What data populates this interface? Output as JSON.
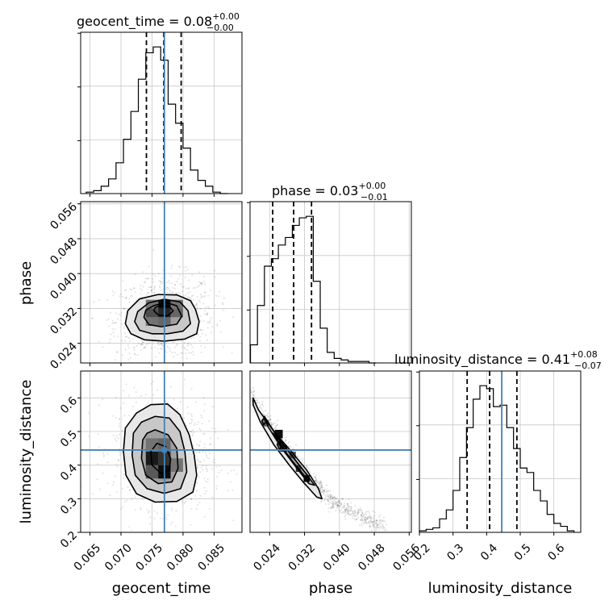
{
  "chart_data": {
    "type": "corner",
    "parameters": [
      "geocent_time",
      "phase",
      "luminosity_distance"
    ],
    "titles": [
      {
        "param": "geocent_time",
        "median_text": "geocent_time = 0.08",
        "plus": "+0.00",
        "minus": "−0.00"
      },
      {
        "param": "phase",
        "median_text": "phase = 0.03",
        "plus": "+0.00",
        "minus": "−0.01"
      },
      {
        "param": "luminosity_distance",
        "median_text": "luminosity_distance = 0.41",
        "plus": "+0.08",
        "minus": "−0.07"
      }
    ],
    "ranges": {
      "geocent_time": [
        0.0635,
        0.0895
      ],
      "phase": [
        0.0195,
        0.0565
      ],
      "luminosity_distance": [
        0.2,
        0.68
      ]
    },
    "ticks": {
      "geocent_time": {
        "values": [
          0.065,
          0.07,
          0.075,
          0.08,
          0.085
        ],
        "labels": [
          "0.065",
          "0.070",
          "0.075",
          "0.080",
          "0.085"
        ]
      },
      "phase_x": {
        "values": [
          0.024,
          0.032,
          0.04,
          0.048,
          0.056
        ],
        "labels": [
          "0.024",
          "0.032",
          "0.040",
          "0.048",
          "0.056"
        ]
      },
      "phase_y": {
        "values": [
          0.024,
          0.032,
          0.04,
          0.048,
          0.056
        ],
        "labels": [
          "0.024",
          "0.032",
          "0.040",
          "0.048",
          "0.056"
        ]
      },
      "luminosity_distance_x": {
        "values": [
          0.2,
          0.3,
          0.4,
          0.5,
          0.6
        ],
        "labels": [
          "0.2",
          "0.3",
          "0.4",
          "0.5",
          "0.6"
        ]
      },
      "luminosity_distance_y": {
        "values": [
          0.2,
          0.3,
          0.4,
          0.5,
          0.6
        ],
        "labels": [
          "0.2",
          "0.3",
          "0.4",
          "0.5",
          "0.6"
        ]
      }
    },
    "axis_labels": {
      "x": [
        "geocent_time",
        "phase",
        "luminosity_distance"
      ],
      "y": [
        "phase",
        "luminosity_distance"
      ]
    },
    "truths": {
      "geocent_time": 0.077,
      "phase": null,
      "luminosity_distance": 0.445
    },
    "quantiles": {
      "geocent_time": [
        0.0741,
        0.0769,
        0.0797
      ],
      "phase": [
        0.0247,
        0.0295,
        0.0336
      ],
      "luminosity_distance": [
        0.342,
        0.409,
        0.49
      ]
    },
    "histograms": {
      "geocent_time": {
        "edges": [
          0.0644,
          0.0656,
          0.0668,
          0.068,
          0.0692,
          0.0704,
          0.0716,
          0.0728,
          0.074,
          0.0752,
          0.0764,
          0.0776,
          0.0788,
          0.08,
          0.0812,
          0.0824,
          0.0836,
          0.0848,
          0.086,
          0.0872
        ],
        "counts": [
          1,
          2,
          5,
          10,
          21,
          37,
          56,
          78,
          96,
          100,
          91,
          61,
          48,
          31,
          16,
          9,
          5,
          1,
          0
        ]
      },
      "phase": {
        "edges": [
          0.0196,
          0.0212,
          0.0228,
          0.0244,
          0.026,
          0.0276,
          0.0292,
          0.0308,
          0.0324,
          0.034,
          0.0356,
          0.0372,
          0.0388,
          0.0404,
          0.042,
          0.0436,
          0.0452,
          0.0468,
          0.0484
        ],
        "counts": [
          12,
          38,
          64,
          69,
          78,
          83,
          91,
          96,
          97,
          54,
          23,
          7,
          3,
          2,
          1,
          1,
          1,
          0
        ]
      },
      "luminosity_distance": {
        "edges": [
          0.2,
          0.22,
          0.24,
          0.26,
          0.28,
          0.3,
          0.32,
          0.34,
          0.36,
          0.38,
          0.4,
          0.42,
          0.44,
          0.46,
          0.48,
          0.5,
          0.52,
          0.54,
          0.56,
          0.58,
          0.6,
          0.62,
          0.64,
          0.66
        ],
        "counts": [
          1,
          2,
          3,
          9,
          15,
          28,
          50,
          70,
          89,
          98,
          96,
          84,
          85,
          70,
          56,
          43,
          40,
          28,
          21,
          12,
          6,
          4,
          1
        ]
      }
    },
    "contours": {
      "geocent_time_vs_phase": [
        [
          [
            0.0707,
            0.0285
          ],
          [
            0.0716,
            0.0262
          ],
          [
            0.0738,
            0.0248
          ],
          [
            0.077,
            0.0245
          ],
          [
            0.0803,
            0.025
          ],
          [
            0.0822,
            0.0262
          ],
          [
            0.0826,
            0.029
          ],
          [
            0.082,
            0.0318
          ],
          [
            0.0812,
            0.0338
          ],
          [
            0.079,
            0.0351
          ],
          [
            0.076,
            0.0352
          ],
          [
            0.073,
            0.0342
          ],
          [
            0.0711,
            0.0315
          ]
        ],
        [
          [
            0.0722,
            0.029
          ],
          [
            0.073,
            0.027
          ],
          [
            0.075,
            0.0262
          ],
          [
            0.0775,
            0.0262
          ],
          [
            0.08,
            0.0268
          ],
          [
            0.0812,
            0.0285
          ],
          [
            0.0808,
            0.0315
          ],
          [
            0.0795,
            0.0335
          ],
          [
            0.077,
            0.0341
          ],
          [
            0.0745,
            0.0333
          ],
          [
            0.0727,
            0.0313
          ]
        ],
        [
          [
            0.0737,
            0.03
          ],
          [
            0.0745,
            0.0283
          ],
          [
            0.0765,
            0.0278
          ],
          [
            0.079,
            0.0284
          ],
          [
            0.0798,
            0.0302
          ],
          [
            0.079,
            0.0326
          ],
          [
            0.0772,
            0.0334
          ],
          [
            0.0752,
            0.0326
          ],
          [
            0.074,
            0.0316
          ]
        ],
        [
          [
            0.0753,
            0.0315
          ],
          [
            0.076,
            0.0305
          ],
          [
            0.0775,
            0.0303
          ],
          [
            0.0784,
            0.0314
          ],
          [
            0.0778,
            0.0325
          ],
          [
            0.0764,
            0.0327
          ],
          [
            0.0755,
            0.0322
          ]
        ]
      ],
      "geocent_time_vs_luminosity_distance": [
        [
          [
            0.0707,
            0.51
          ],
          [
            0.0704,
            0.44
          ],
          [
            0.0708,
            0.37
          ],
          [
            0.0725,
            0.315
          ],
          [
            0.0755,
            0.29
          ],
          [
            0.079,
            0.292
          ],
          [
            0.0816,
            0.32
          ],
          [
            0.0822,
            0.37
          ],
          [
            0.0818,
            0.43
          ],
          [
            0.081,
            0.49
          ],
          [
            0.0795,
            0.55
          ],
          [
            0.0775,
            0.582
          ],
          [
            0.0748,
            0.58
          ],
          [
            0.0725,
            0.555
          ]
        ],
        [
          [
            0.072,
            0.495
          ],
          [
            0.0718,
            0.43
          ],
          [
            0.0723,
            0.37
          ],
          [
            0.0742,
            0.33
          ],
          [
            0.077,
            0.316
          ],
          [
            0.0796,
            0.33
          ],
          [
            0.0806,
            0.38
          ],
          [
            0.0803,
            0.44
          ],
          [
            0.0795,
            0.5
          ],
          [
            0.0778,
            0.54
          ],
          [
            0.0755,
            0.545
          ],
          [
            0.0733,
            0.528
          ]
        ],
        [
          [
            0.0735,
            0.475
          ],
          [
            0.0733,
            0.42
          ],
          [
            0.074,
            0.37
          ],
          [
            0.076,
            0.345
          ],
          [
            0.0782,
            0.35
          ],
          [
            0.0792,
            0.39
          ],
          [
            0.079,
            0.45
          ],
          [
            0.0776,
            0.49
          ],
          [
            0.0755,
            0.505
          ],
          [
            0.0742,
            0.495
          ]
        ],
        [
          [
            0.0748,
            0.44
          ],
          [
            0.075,
            0.4
          ],
          [
            0.0765,
            0.375
          ],
          [
            0.0778,
            0.385
          ],
          [
            0.078,
            0.42
          ],
          [
            0.0772,
            0.455
          ],
          [
            0.0758,
            0.465
          ]
        ]
      ],
      "phase_vs_luminosity_distance": [
        [
          [
            0.0202,
            0.6
          ],
          [
            0.0214,
            0.565
          ],
          [
            0.025,
            0.5
          ],
          [
            0.029,
            0.44
          ],
          [
            0.0325,
            0.385
          ],
          [
            0.0352,
            0.33
          ],
          [
            0.036,
            0.3
          ],
          [
            0.0348,
            0.305
          ],
          [
            0.0318,
            0.348
          ],
          [
            0.0285,
            0.4
          ],
          [
            0.025,
            0.46
          ],
          [
            0.0218,
            0.53
          ],
          [
            0.0202,
            0.58
          ]
        ],
        [
          [
            0.0228,
            0.545
          ],
          [
            0.0255,
            0.49
          ],
          [
            0.029,
            0.43
          ],
          [
            0.0325,
            0.372
          ],
          [
            0.0343,
            0.34
          ],
          [
            0.033,
            0.345
          ],
          [
            0.03,
            0.395
          ],
          [
            0.0265,
            0.455
          ],
          [
            0.0236,
            0.515
          ]
        ],
        [
          [
            0.0248,
            0.495
          ],
          [
            0.0275,
            0.455
          ],
          [
            0.0305,
            0.405
          ],
          [
            0.033,
            0.365
          ],
          [
            0.032,
            0.368
          ],
          [
            0.029,
            0.415
          ],
          [
            0.0262,
            0.465
          ]
        ],
        [
          [
            0.0227,
            0.54
          ],
          [
            0.0232,
            0.528
          ],
          [
            0.0226,
            0.52
          ],
          [
            0.0222,
            0.532
          ]
        ],
        [
          [
            0.0262,
            0.47
          ],
          [
            0.027,
            0.455
          ],
          [
            0.0262,
            0.448
          ],
          [
            0.0257,
            0.462
          ]
        ]
      ]
    },
    "density_blocks": {
      "geocent_time_vs_phase": [
        {
          "x": [
            0.074,
            0.076
          ],
          "y": [
            0.028,
            0.03
          ],
          "level": 0.55
        },
        {
          "x": [
            0.076,
            0.078
          ],
          "y": [
            0.028,
            0.03
          ],
          "level": 0.6
        },
        {
          "x": [
            0.074,
            0.076
          ],
          "y": [
            0.03,
            0.032
          ],
          "level": 0.7
        },
        {
          "x": [
            0.076,
            0.078
          ],
          "y": [
            0.03,
            0.032
          ],
          "level": 0.85
        },
        {
          "x": [
            0.078,
            0.08
          ],
          "y": [
            0.03,
            0.032
          ],
          "level": 0.6
        },
        {
          "x": [
            0.076,
            0.078
          ],
          "y": [
            0.032,
            0.034
          ],
          "level": 0.95
        },
        {
          "x": [
            0.074,
            0.076
          ],
          "y": [
            0.032,
            0.034
          ],
          "level": 0.55
        },
        {
          "x": [
            0.078,
            0.08
          ],
          "y": [
            0.032,
            0.034
          ],
          "level": 0.55
        }
      ],
      "geocent_time_vs_luminosity_distance": [
        {
          "x": [
            0.074,
            0.076
          ],
          "y": [
            0.36,
            0.4
          ],
          "level": 0.65
        },
        {
          "x": [
            0.076,
            0.078
          ],
          "y": [
            0.36,
            0.4
          ],
          "level": 0.95
        },
        {
          "x": [
            0.074,
            0.076
          ],
          "y": [
            0.4,
            0.44
          ],
          "level": 0.9
        },
        {
          "x": [
            0.076,
            0.078
          ],
          "y": [
            0.4,
            0.44
          ],
          "level": 0.8
        },
        {
          "x": [
            0.074,
            0.076
          ],
          "y": [
            0.44,
            0.48
          ],
          "level": 0.55
        },
        {
          "x": [
            0.076,
            0.078
          ],
          "y": [
            0.44,
            0.48
          ],
          "level": 0.6
        },
        {
          "x": [
            0.078,
            0.08
          ],
          "y": [
            0.38,
            0.42
          ],
          "level": 0.55
        }
      ],
      "phase_vs_luminosity_distance": [
        {
          "x": [
            0.0226,
            0.0238
          ],
          "y": [
            0.515,
            0.535
          ],
          "level": 0.6
        },
        {
          "x": [
            0.0252,
            0.027
          ],
          "y": [
            0.48,
            0.505
          ],
          "level": 0.95
        },
        {
          "x": [
            0.0264,
            0.028
          ],
          "y": [
            0.44,
            0.46
          ],
          "level": 0.9
        },
        {
          "x": [
            0.0285,
            0.03
          ],
          "y": [
            0.42,
            0.44
          ],
          "level": 0.7
        },
        {
          "x": [
            0.03,
            0.0312
          ],
          "y": [
            0.38,
            0.4
          ],
          "level": 0.8
        },
        {
          "x": [
            0.0318,
            0.0332
          ],
          "y": [
            0.35,
            0.37
          ],
          "level": 1.0
        }
      ]
    },
    "scatter": {
      "geocent_time_vs_phase": {
        "center": [
          0.077,
          0.03
        ],
        "spread": [
          0.004,
          0.0048
        ],
        "corr": 0.1,
        "count": 900
      },
      "geocent_time_vs_luminosity_distance": {
        "center": [
          0.0768,
          0.43
        ],
        "spread": [
          0.004,
          0.08
        ],
        "corr": -0.1,
        "count": 900
      },
      "phase_vs_luminosity_distance": {
        "curve": [
          [
            0.0196,
            0.612
          ],
          [
            0.024,
            0.52
          ],
          [
            0.029,
            0.43
          ],
          [
            0.034,
            0.35
          ],
          [
            0.038,
            0.3
          ],
          [
            0.042,
            0.265
          ],
          [
            0.046,
            0.24
          ],
          [
            0.05,
            0.225
          ]
        ],
        "count": 700
      }
    },
    "colors": {
      "truth": "#4682b4",
      "hist": "#000000",
      "contour": "#000000",
      "grid": "#c8c8c8",
      "frame": "#000000"
    }
  }
}
